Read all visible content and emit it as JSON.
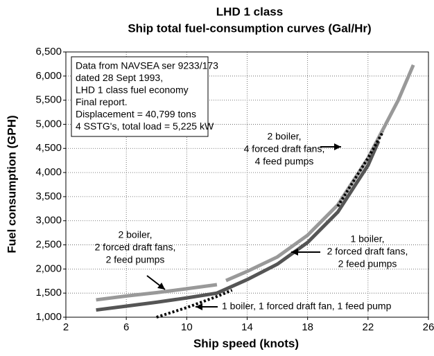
{
  "chart_data": {
    "type": "line",
    "title": [
      "LHD 1 class",
      "Ship total fuel-consumption curves (Gal/Hr)"
    ],
    "x_label": "Ship speed (knots)",
    "y_label": "Fuel consumption (GPH)",
    "xlim": [
      2,
      26
    ],
    "xticks": [
      2,
      6,
      10,
      14,
      18,
      22,
      26
    ],
    "ylim": [
      1000,
      6500
    ],
    "yticks": [
      {
        "value": 1000,
        "label": "1,000"
      },
      {
        "value": 1500,
        "label": "1,500"
      },
      {
        "value": 2000,
        "label": "2,000"
      },
      {
        "value": 2500,
        "label": "2,500"
      },
      {
        "value": 3000,
        "label": "3,000"
      },
      {
        "value": 3500,
        "label": "3,500"
      },
      {
        "value": 4000,
        "label": "4,000"
      },
      {
        "value": 4500,
        "label": "4,500"
      },
      {
        "value": 5000,
        "label": "5,000"
      },
      {
        "value": 5500,
        "label": "5,500"
      },
      {
        "value": 6000,
        "label": "6,000"
      },
      {
        "value": 6500,
        "label": "6,500"
      }
    ],
    "grid": true,
    "note": [
      "Data from NAVSEA ser 9233/173",
      "dated 28 Sept 1993,",
      "LHD 1 class fuel economy",
      "Final report.",
      "Displacement = 40,799 tons",
      "4 SSTG's, total load = 5,225 kW"
    ],
    "annotations": [
      [
        "2 boiler,",
        "4 forced draft fans,",
        "4 feed pumps"
      ],
      [
        "1 boiler,",
        "2 forced draft fans,",
        "2 feed pumps"
      ],
      [
        "2 boiler,",
        "2 forced draft fans,",
        "2 feed pumps"
      ],
      [
        "1 boiler, 1 forced draft fan, 1 feed pump"
      ]
    ],
    "series": [
      {
        "color": "#999999",
        "style": "solid",
        "x": [
          4,
          6,
          8,
          10,
          12,
          12.3,
          12.6,
          14,
          16,
          18,
          20,
          22,
          24,
          25
        ],
        "values": [
          1360,
          1440,
          1510,
          1590,
          1675,
          null,
          1760,
          1950,
          2250,
          2700,
          3330,
          4300,
          5500,
          6230
        ]
      },
      {
        "color": "#555555",
        "style": "solid",
        "x": [
          4,
          6,
          8,
          10,
          12,
          14,
          16,
          18,
          20,
          22,
          22.7
        ],
        "values": [
          1150,
          1230,
          1310,
          1400,
          1500,
          1780,
          2100,
          2550,
          3180,
          4150,
          4650
        ]
      },
      {
        "color": "#000000",
        "style": "dotted",
        "x": [
          8,
          10,
          12,
          13,
          16,
          20,
          21,
          22,
          23
        ],
        "values": [
          1000,
          1200,
          1430,
          1560,
          null,
          3300,
          3800,
          4300,
          4850
        ]
      }
    ]
  }
}
